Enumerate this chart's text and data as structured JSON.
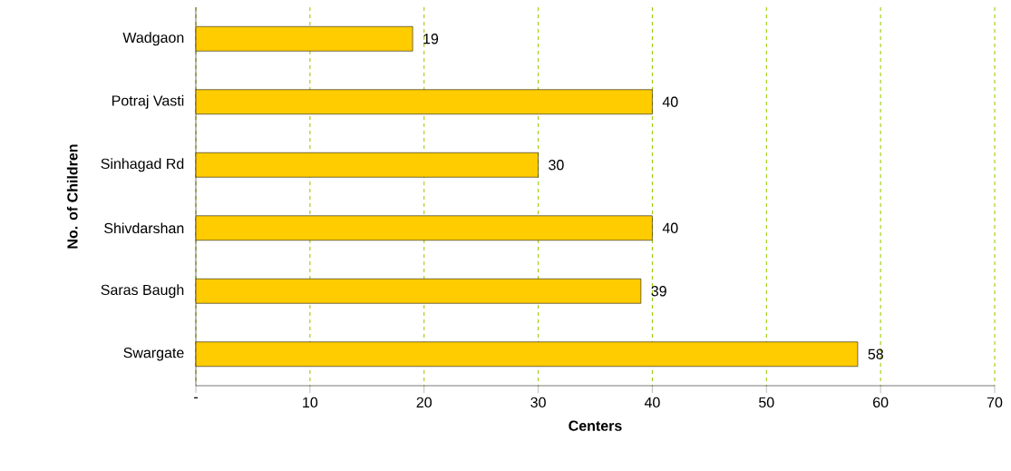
{
  "chart_data": {
    "type": "bar",
    "orientation": "horizontal",
    "xlabel": "Centers",
    "ylabel": "No. of Children",
    "categories": [
      "Wadgaon",
      "Potraj Vasti",
      "Sinhagad Rd",
      "Shivdarshan",
      "Saras Baugh",
      "Swargate"
    ],
    "values": [
      19,
      40,
      30,
      40,
      39,
      58
    ],
    "color": "#ffcc00",
    "xlim": [
      0,
      70
    ],
    "xticks": [
      {
        "value": 0,
        "label": "-"
      },
      10,
      20,
      30,
      40,
      50,
      60,
      70
    ],
    "grid": "x",
    "data_labels": true
  }
}
